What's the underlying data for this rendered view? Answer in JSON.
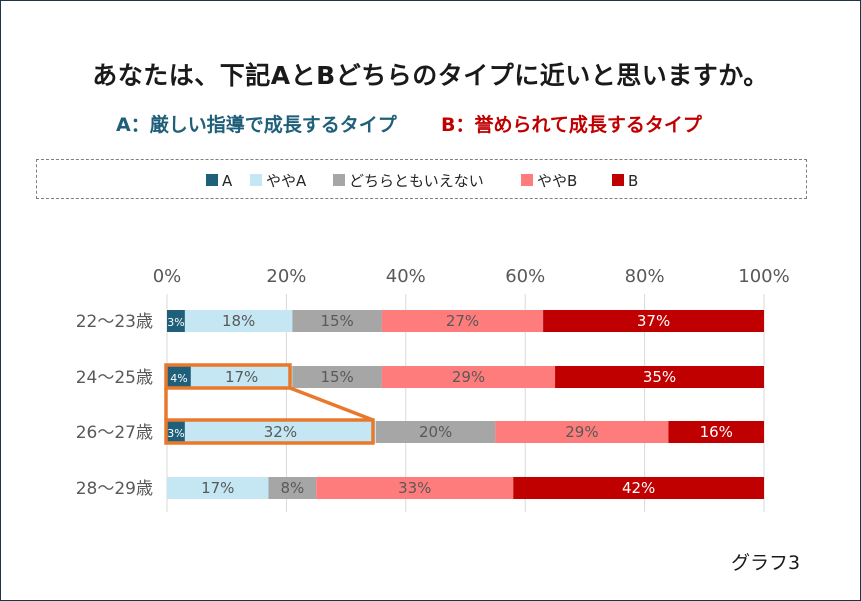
{
  "header": {
    "title": "あなたは、下記AとBどちらのタイプに近いと思いますか。",
    "subtitle_a": "A：厳しい指導で成長するタイプ",
    "subtitle_b": "B：誉められて成長するタイプ"
  },
  "footer": {
    "label": "グラフ3"
  },
  "colors": {
    "A": "#1f5f7a",
    "ややA": "#c5e7f3",
    "どちらともいえない": "#a6a6a6",
    "ややB": "#ff7c7c",
    "B": "#c00000",
    "highlight": "#e8792c"
  },
  "chart_data": {
    "type": "bar",
    "orientation": "horizontal-stacked",
    "categories": [
      "22～23歳",
      "24～25歳",
      "26～27歳",
      "28～29歳"
    ],
    "series": [
      {
        "name": "A",
        "values": [
          3,
          4,
          3,
          0
        ]
      },
      {
        "name": "ややA",
        "values": [
          18,
          17,
          32,
          17
        ]
      },
      {
        "name": "どちらともいえない",
        "values": [
          15,
          15,
          20,
          8
        ]
      },
      {
        "name": "ややB",
        "values": [
          27,
          29,
          29,
          33
        ]
      },
      {
        "name": "B",
        "values": [
          37,
          35,
          16,
          42
        ]
      }
    ],
    "data_labels": [
      [
        "3%",
        "18%",
        "15%",
        "27%",
        "37%"
      ],
      [
        "4%",
        "17%",
        "15%",
        "29%",
        "35%"
      ],
      [
        "3%",
        "32%",
        "20%",
        "29%",
        "16%"
      ],
      [
        "",
        "17%",
        "8%",
        "33%",
        "42%"
      ]
    ],
    "xticks": [
      "0%",
      "20%",
      "40%",
      "60%",
      "80%",
      "100%"
    ],
    "xlim": [
      0,
      100
    ],
    "legend_position": "top",
    "grid": true,
    "highlight": "24～25歳 ややA → 26～27歳 ややA"
  }
}
